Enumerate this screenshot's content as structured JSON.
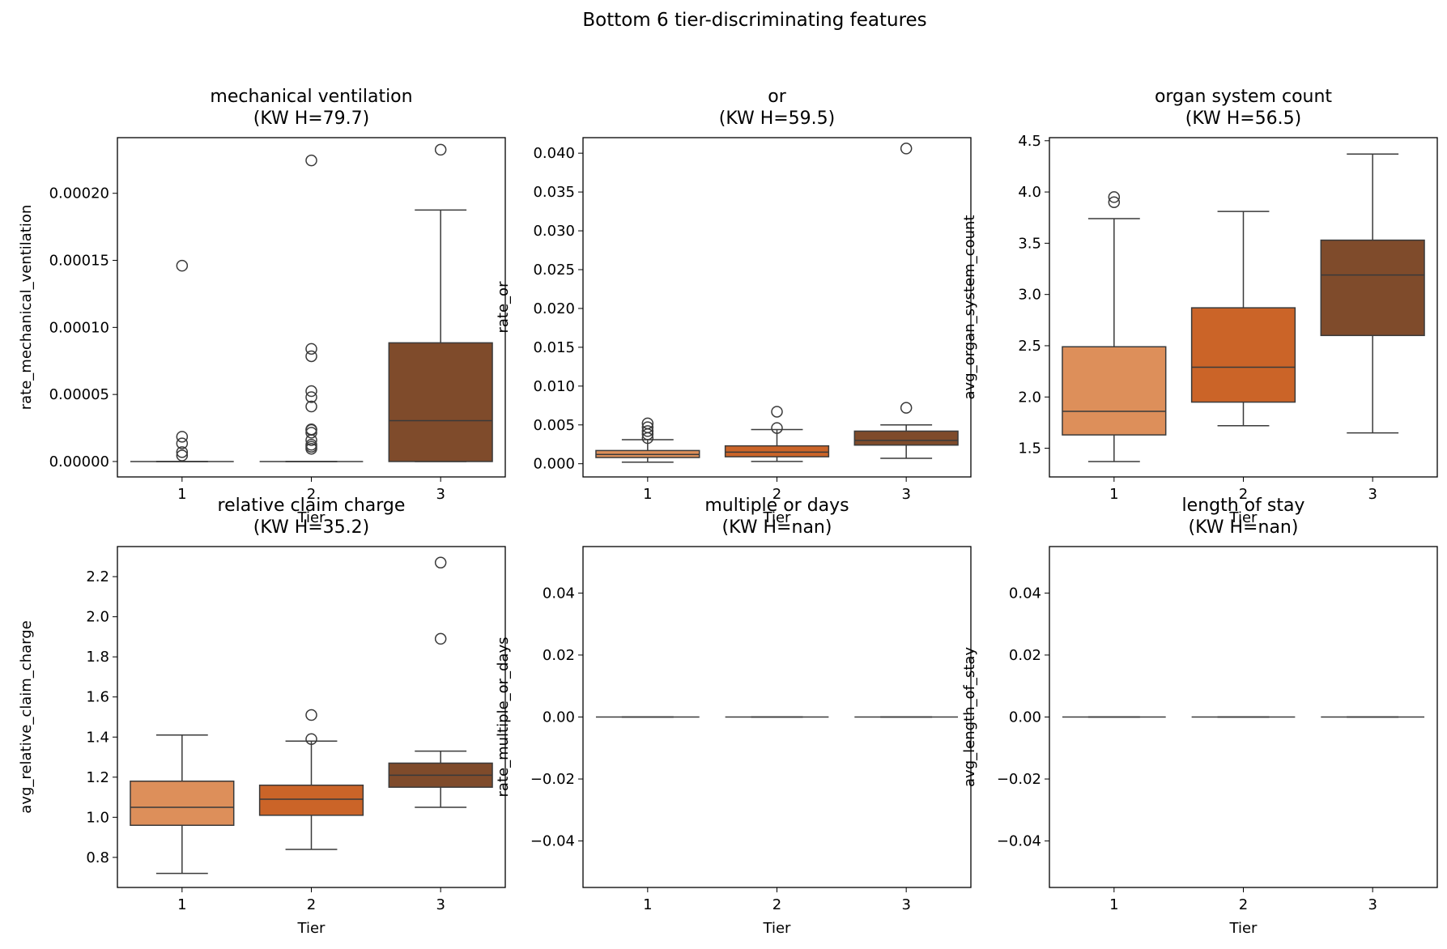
{
  "chart_data": {
    "title": "Bottom 6 tier-discriminating features",
    "colors": [
      "#dd8f5a",
      "#cb6428",
      "#7f4b2b"
    ],
    "panels": [
      {
        "type": "box",
        "title_line1": "mechanical ventilation",
        "title_line2": "(KW H=79.7)",
        "xlabel": "Tier",
        "ylabel": "rate_mechanical_ventilation",
        "categories": [
          "1",
          "2",
          "3"
        ],
        "ylim": [
          -1.15e-05,
          0.0002415
        ],
        "yticks": [
          0,
          5e-05,
          0.0001,
          0.00015,
          0.0002
        ],
        "ytick_labels": [
          "0.00000",
          "0.00005",
          "0.00010",
          "0.00015",
          "0.00020"
        ],
        "boxes": [
          {
            "q1": 0,
            "median": 0,
            "q3": 0,
            "whisker_low": 0,
            "whisker_high": 0,
            "outliers": [
              4.5e-06,
              7e-06,
              1.35e-05,
              1.85e-05,
              0.000146
            ]
          },
          {
            "q1": 0,
            "median": 0,
            "q3": 0,
            "whisker_low": 0,
            "whisker_high": 0,
            "outliers": [
              9.5e-06,
              1.1e-05,
              1.25e-05,
              1.6e-05,
              2.15e-05,
              2.35e-05,
              2.4e-05,
              4.1e-05,
              4.8e-05,
              5.25e-05,
              7.85e-05,
              8.4e-05,
              0.0002245
            ]
          },
          {
            "q1": 0,
            "median": 3.05e-05,
            "q3": 8.85e-05,
            "whisker_low": 0,
            "whisker_high": 0.0001875,
            "outliers": [
              0.0002325
            ]
          }
        ]
      },
      {
        "type": "box",
        "title_line1": "or",
        "title_line2": "(KW H=59.5)",
        "xlabel": "Tier",
        "ylabel": "rate_or",
        "categories": [
          "1",
          "2",
          "3"
        ],
        "ylim": [
          -0.0017,
          0.042
        ],
        "yticks": [
          0,
          0.005,
          0.01,
          0.015,
          0.02,
          0.025,
          0.03,
          0.035,
          0.04
        ],
        "ytick_labels": [
          "0.000",
          "0.005",
          "0.010",
          "0.015",
          "0.020",
          "0.025",
          "0.030",
          "0.035",
          "0.040"
        ],
        "boxes": [
          {
            "q1": 0.0008,
            "median": 0.0012,
            "q3": 0.0017,
            "whisker_low": 0.0002,
            "whisker_high": 0.0031,
            "outliers": [
              0.0033,
              0.0038,
              0.0042,
              0.0047,
              0.0052
            ]
          },
          {
            "q1": 0.0009,
            "median": 0.0015,
            "q3": 0.0023,
            "whisker_low": 0.0003,
            "whisker_high": 0.0044,
            "outliers": [
              0.0046,
              0.0067
            ]
          },
          {
            "q1": 0.0024,
            "median": 0.003,
            "q3": 0.0042,
            "whisker_low": 0.0007,
            "whisker_high": 0.005,
            "outliers": [
              0.0072,
              0.0406
            ]
          }
        ]
      },
      {
        "type": "box",
        "title_line1": "organ system count",
        "title_line2": "(KW H=56.5)",
        "xlabel": "Tier",
        "ylabel": "avg_organ_system_count",
        "categories": [
          "1",
          "2",
          "3"
        ],
        "ylim": [
          1.22,
          4.53
        ],
        "yticks": [
          1.5,
          2.0,
          2.5,
          3.0,
          3.5,
          4.0,
          4.5
        ],
        "ytick_labels": [
          "1.5",
          "2.0",
          "2.5",
          "3.0",
          "3.5",
          "4.0",
          "4.5"
        ],
        "boxes": [
          {
            "q1": 1.63,
            "median": 1.86,
            "q3": 2.49,
            "whisker_low": 1.37,
            "whisker_high": 3.74,
            "outliers": [
              3.9,
              3.95
            ]
          },
          {
            "q1": 1.95,
            "median": 2.29,
            "q3": 2.87,
            "whisker_low": 1.72,
            "whisker_high": 3.81,
            "outliers": []
          },
          {
            "q1": 2.6,
            "median": 3.19,
            "q3": 3.53,
            "whisker_low": 1.65,
            "whisker_high": 4.37,
            "outliers": []
          }
        ]
      },
      {
        "type": "box",
        "title_line1": "relative claim charge",
        "title_line2": "(KW H=35.2)",
        "xlabel": "Tier",
        "ylabel": "avg_relative_claim_charge",
        "categories": [
          "1",
          "2",
          "3"
        ],
        "ylim": [
          0.65,
          2.35
        ],
        "yticks": [
          0.8,
          1.0,
          1.2,
          1.4,
          1.6,
          1.8,
          2.0,
          2.2
        ],
        "ytick_labels": [
          "0.8",
          "1.0",
          "1.2",
          "1.4",
          "1.6",
          "1.8",
          "2.0",
          "2.2"
        ],
        "boxes": [
          {
            "q1": 0.96,
            "median": 1.05,
            "q3": 1.18,
            "whisker_low": 0.72,
            "whisker_high": 1.41,
            "outliers": []
          },
          {
            "q1": 1.01,
            "median": 1.09,
            "q3": 1.16,
            "whisker_low": 0.84,
            "whisker_high": 1.38,
            "outliers": [
              1.39,
              1.51
            ]
          },
          {
            "q1": 1.15,
            "median": 1.21,
            "q3": 1.27,
            "whisker_low": 1.05,
            "whisker_high": 1.33,
            "outliers": [
              1.89,
              2.27
            ]
          }
        ]
      },
      {
        "type": "box",
        "title_line1": "multiple or days",
        "title_line2": "(KW H=nan)",
        "xlabel": "Tier",
        "ylabel": "rate_multiple_or_days",
        "categories": [
          "1",
          "2",
          "3"
        ],
        "ylim": [
          -0.055,
          0.055
        ],
        "yticks": [
          -0.04,
          -0.02,
          0,
          0.02,
          0.04
        ],
        "ytick_labels": [
          "−0.04",
          "−0.02",
          "0.00",
          "0.02",
          "0.04"
        ],
        "boxes": [
          {
            "q1": 0,
            "median": 0,
            "q3": 0,
            "whisker_low": 0,
            "whisker_high": 0,
            "outliers": []
          },
          {
            "q1": 0,
            "median": 0,
            "q3": 0,
            "whisker_low": 0,
            "whisker_high": 0,
            "outliers": []
          },
          {
            "q1": 0,
            "median": 0,
            "q3": 0,
            "whisker_low": 0,
            "whisker_high": 0,
            "outliers": []
          }
        ]
      },
      {
        "type": "box",
        "title_line1": "length of stay",
        "title_line2": "(KW H=nan)",
        "xlabel": "Tier",
        "ylabel": "avg_length_of_stay",
        "categories": [
          "1",
          "2",
          "3"
        ],
        "ylim": [
          -0.055,
          0.055
        ],
        "yticks": [
          -0.04,
          -0.02,
          0,
          0.02,
          0.04
        ],
        "ytick_labels": [
          "−0.04",
          "−0.02",
          "0.00",
          "0.02",
          "0.04"
        ],
        "boxes": [
          {
            "q1": 0,
            "median": 0,
            "q3": 0,
            "whisker_low": 0,
            "whisker_high": 0,
            "outliers": []
          },
          {
            "q1": 0,
            "median": 0,
            "q3": 0,
            "whisker_low": 0,
            "whisker_high": 0,
            "outliers": []
          },
          {
            "q1": 0,
            "median": 0,
            "q3": 0,
            "whisker_low": 0,
            "whisker_high": 0,
            "outliers": []
          }
        ]
      }
    ]
  }
}
